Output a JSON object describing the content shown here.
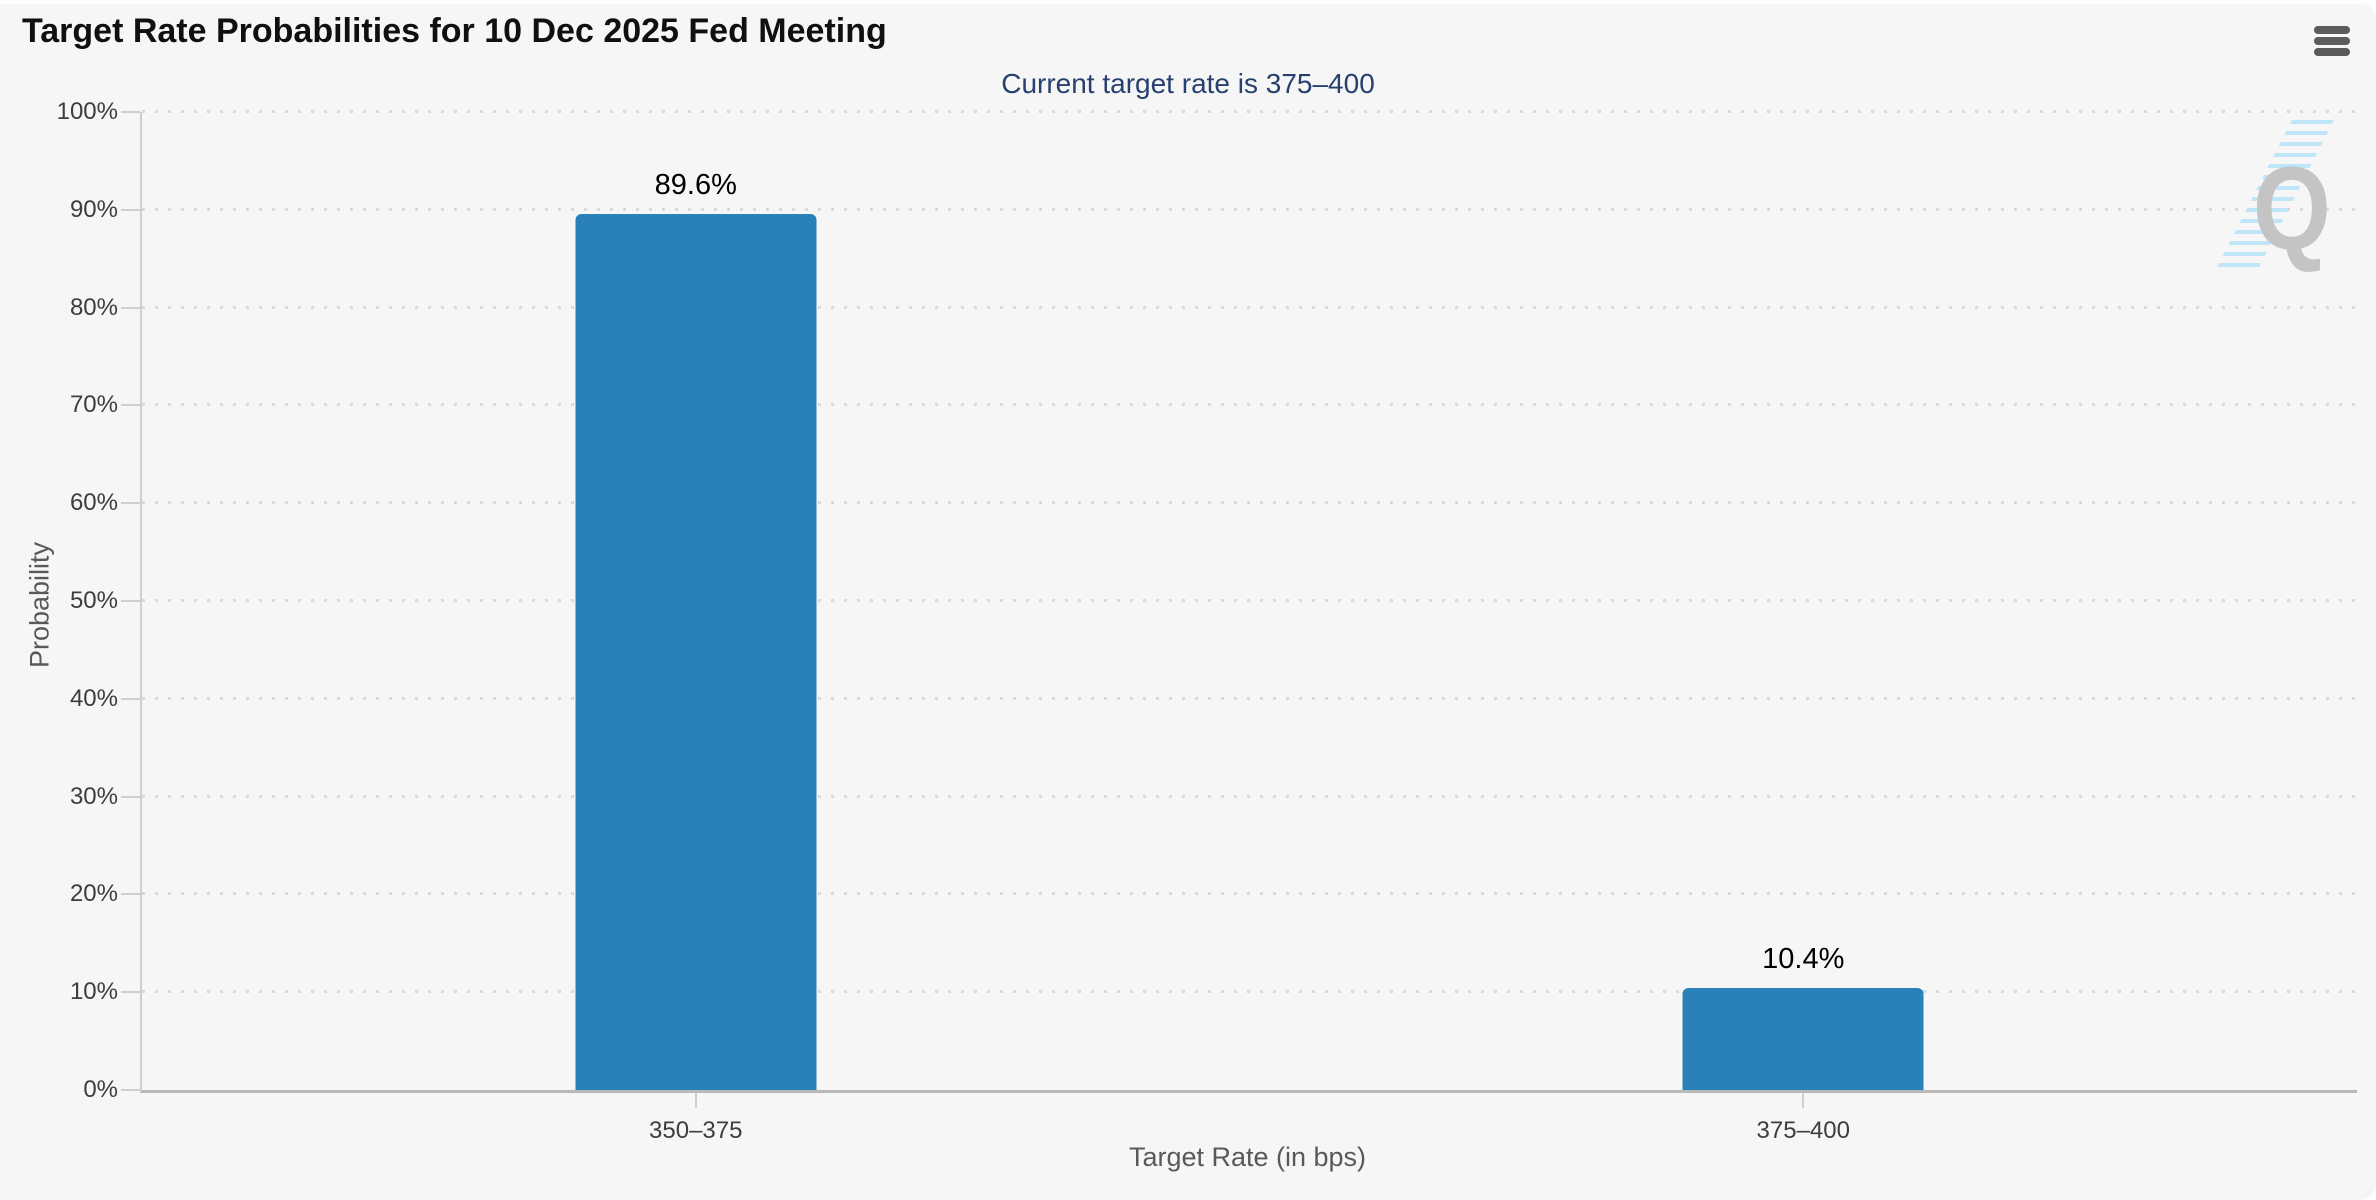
{
  "header": {
    "title": "Target Rate Probabilities for 10 Dec 2025 Fed Meeting",
    "menu_icon": "hamburger-icon"
  },
  "chart_data": {
    "type": "bar",
    "title": "Target Rate Probabilities for 10 Dec 2025 Fed Meeting",
    "subtitle": "Current target rate is 375–400",
    "categories": [
      "350–375",
      "375–400"
    ],
    "values": [
      89.6,
      10.4
    ],
    "value_labels": [
      "89.6%",
      "10.4%"
    ],
    "xlabel": "Target Rate (in bps)",
    "ylabel": "Probability",
    "ylim": [
      0,
      100
    ],
    "yticks": [
      {
        "value": 0,
        "label": "0%"
      },
      {
        "value": 10,
        "label": "10%"
      },
      {
        "value": 20,
        "label": "20%"
      },
      {
        "value": 30,
        "label": "30%"
      },
      {
        "value": 40,
        "label": "40%"
      },
      {
        "value": 50,
        "label": "50%"
      },
      {
        "value": 60,
        "label": "60%"
      },
      {
        "value": 70,
        "label": "70%"
      },
      {
        "value": 80,
        "label": "80%"
      },
      {
        "value": 90,
        "label": "90%"
      },
      {
        "value": 100,
        "label": "100%"
      }
    ],
    "grid": "horizontal-dotted",
    "legend": "none",
    "bar_color": "#2a80b9"
  },
  "colors": {
    "background": "#f6f6f6",
    "bar": "#2a80b9",
    "subtitle_text": "#28406e",
    "axis_line": "#b9b9b9",
    "grid_dot": "#d9d9d9",
    "watermark_q": "#c4c4c4",
    "watermark_dashes": "#b9e3f9"
  },
  "watermark": {
    "letter": "Q"
  }
}
